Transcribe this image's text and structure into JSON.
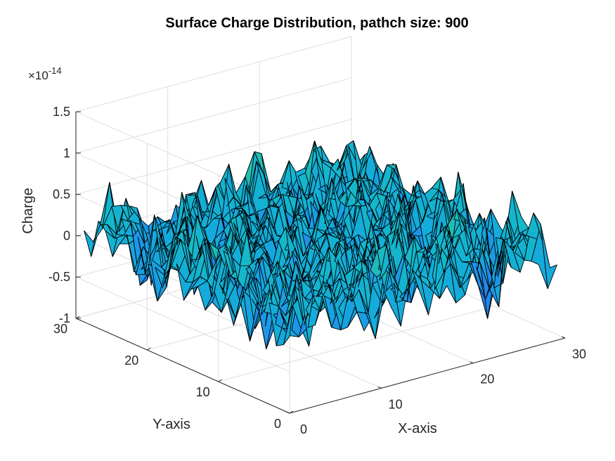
{
  "chart_data": {
    "type": "surface",
    "title": "Surface Charge Distribution, pathch size: 900",
    "xlabel": "X-axis",
    "ylabel": "Y-axis",
    "zlabel": "Charge",
    "z_exponent_label": "×10",
    "z_exponent_power": "-14",
    "xlim": [
      0,
      30
    ],
    "ylim": [
      0,
      30
    ],
    "zlim": [
      -1,
      1.5
    ],
    "grid": "on",
    "colormap": "parula",
    "x_ticks": [
      0,
      10,
      20,
      30
    ],
    "y_ticks": [
      0,
      10,
      20,
      30
    ],
    "z_ticks": [
      -1,
      -0.5,
      0,
      0.5,
      1,
      1.5
    ],
    "x_tick_labels": [
      "0",
      "10",
      "20",
      "30"
    ],
    "y_tick_labels": [
      "0",
      "10",
      "20",
      "30"
    ],
    "z_tick_labels": [
      "-1",
      "-0.5",
      "0",
      "0.5",
      "1",
      "1.5"
    ],
    "grid_size": [
      30,
      30
    ],
    "z_range_observed": [
      -0.9,
      1.3
    ],
    "colors": {
      "low": "#3e26a8",
      "mid_low": "#2f69ff",
      "mid": "#14b9c8",
      "mid_high": "#62cc5c",
      "high": "#f8ba3d",
      "peak": "#fde72b"
    }
  }
}
